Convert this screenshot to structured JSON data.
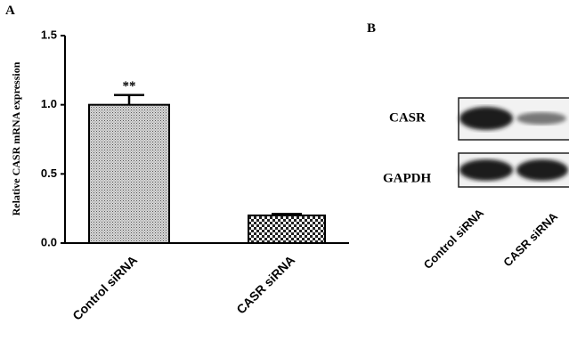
{
  "chart_data": {
    "type": "bar",
    "panel_label": "A",
    "ylabel": "Relative CASR mRNA expression",
    "categories": [
      "Control siRNA",
      "CASR siRNA"
    ],
    "values": [
      1.0,
      0.2
    ],
    "errors": [
      0.07,
      0.01
    ],
    "annotation": "**",
    "ylim": [
      0,
      1.5
    ],
    "yticks": [
      {
        "value": 0,
        "label": "0.0"
      },
      0.5,
      {
        "value": 1,
        "label": "1.0"
      },
      1.5
    ]
  },
  "blot": {
    "panel_label": "B",
    "rows": [
      "CASR",
      "GAPDH"
    ],
    "lanes": [
      "Control siRNA",
      "CASR siRNA"
    ]
  }
}
